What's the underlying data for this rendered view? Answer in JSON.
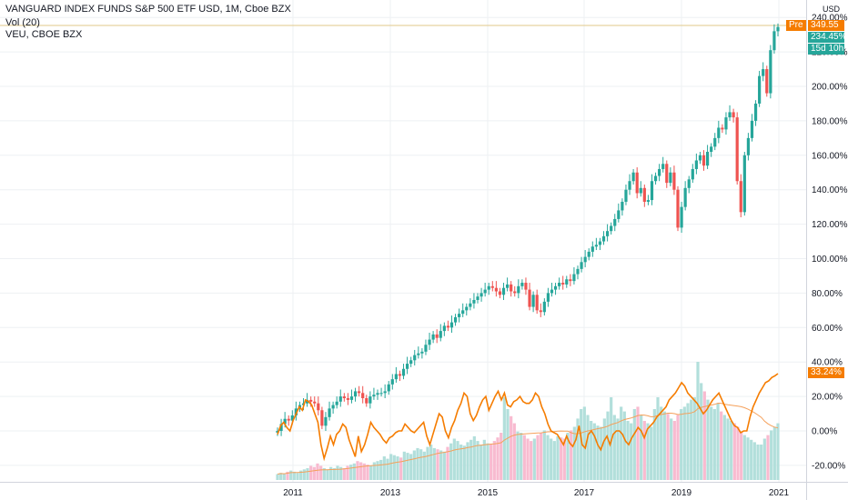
{
  "legend": {
    "main": "VANGUARD INDEX FUNDS S&P 500 ETF USD, 1M, Cboe BZX",
    "volume": "Vol (20)",
    "compare": "VEU, CBOE BZX"
  },
  "currency": "USD",
  "tags": {
    "pre_label": "Pre",
    "pre_value": "349.55",
    "voo_value": "234.45%",
    "countdown": "15d 10h",
    "veu_value": "33.24%"
  },
  "colors": {
    "up": "#26a69a",
    "down": "#ef5350",
    "compare_line": "#f57c00",
    "vol_up": "#b2dfdb",
    "vol_down": "#f8bbd0",
    "grid": "#eef0f3",
    "pre_line": "#e0c98a"
  },
  "chart_data": {
    "type": "candlestick",
    "y_axis": {
      "unit": "%",
      "ticks": [
        "240.00%",
        "220.00%",
        "200.00%",
        "180.00%",
        "160.00%",
        "140.00%",
        "120.00%",
        "100.00%",
        "80.00%",
        "60.00%",
        "40.00%",
        "20.00%",
        "0.00%",
        "-20.00%"
      ],
      "range": [
        -33,
        242
      ]
    },
    "x_axis": {
      "ticks": [
        "2011",
        "2013",
        "2015",
        "2017",
        "2019",
        "2021"
      ]
    },
    "series": [
      {
        "name": "VANGUARD INDEX FUNDS S&P 500 ETF USD",
        "kind": "candlestick",
        "close": [
          0,
          4,
          7,
          6,
          9,
          13,
          15,
          16,
          18,
          17,
          16,
          12,
          3,
          8,
          13,
          15,
          17,
          20,
          19,
          18,
          20,
          23,
          22,
          19,
          16,
          20,
          21,
          22,
          22,
          23,
          27,
          30,
          33,
          32,
          36,
          39,
          41,
          44,
          45,
          46,
          50,
          53,
          56,
          54,
          58,
          61,
          60,
          63,
          66,
          68,
          70,
          72,
          74,
          76,
          78,
          80,
          82,
          84,
          83,
          81,
          79,
          83,
          85,
          81,
          80,
          84,
          86,
          82,
          72,
          79,
          70,
          69,
          75,
          80,
          82,
          84,
          86,
          85,
          88,
          87,
          91,
          94,
          98,
          101,
          104,
          107,
          108,
          110,
          113,
          116,
          119,
          123,
          128,
          133,
          140,
          145,
          150,
          138,
          141,
          133,
          134,
          145,
          148,
          152,
          155,
          144,
          150,
          140,
          118,
          130,
          141,
          146,
          152,
          157,
          160,
          154,
          162,
          165,
          170,
          176,
          175,
          182,
          185,
          182,
          145,
          127,
          160,
          170,
          180,
          190,
          206,
          210,
          196,
          221,
          232,
          234.45
        ],
        "monthly_min_pct": -1,
        "monthly_max_pct": 240
      },
      {
        "name": "VEU, CBOE BZX",
        "kind": "line",
        "values": [
          -2,
          3,
          5,
          2,
          0,
          6,
          10,
          14,
          12,
          18,
          17,
          15,
          10,
          5,
          -8,
          -16,
          -10,
          -3,
          -8,
          -2,
          0,
          4,
          2,
          -5,
          -10,
          -15,
          -3,
          -12,
          -8,
          -2,
          5,
          2,
          0,
          -2,
          -5,
          -7,
          -4,
          -3,
          -1,
          0,
          0,
          4,
          2,
          0,
          -1,
          1,
          3,
          5,
          -3,
          -8,
          -2,
          4,
          10,
          8,
          0,
          -4,
          2,
          6,
          12,
          16,
          22,
          20,
          10,
          6,
          9,
          14,
          18,
          20,
          12,
          16,
          20,
          23,
          18,
          22,
          15,
          14,
          17,
          18,
          20,
          17,
          16,
          16,
          18,
          22,
          20,
          14,
          10,
          4,
          0,
          -1,
          -2,
          -5,
          -8,
          -3,
          -7,
          -9,
          -5,
          3,
          -8,
          -10,
          -2,
          0,
          -3,
          -8,
          -11,
          -6,
          -3,
          -8,
          -2,
          0,
          0,
          -2,
          -6,
          -8,
          -4,
          -1,
          2,
          0,
          -4,
          1,
          3,
          5,
          8,
          10,
          12,
          14,
          18,
          20,
          22,
          25,
          28,
          26,
          22,
          20,
          18,
          16,
          13,
          10,
          12,
          15,
          18,
          20,
          22,
          18,
          14,
          10,
          6,
          3,
          2,
          -1,
          0,
          0,
          8,
          14,
          18,
          22,
          25,
          28,
          29,
          31,
          32,
          33.24
        ]
      },
      {
        "name": "Vol (20)",
        "kind": "volume_bars",
        "relative_values": [
          0.05,
          0.06,
          0.05,
          0.07,
          0.08,
          0.07,
          0.06,
          0.08,
          0.09,
          0.1,
          0.12,
          0.11,
          0.14,
          0.12,
          0.1,
          0.09,
          0.11,
          0.1,
          0.12,
          0.11,
          0.1,
          0.12,
          0.13,
          0.14,
          0.16,
          0.15,
          0.14,
          0.13,
          0.12,
          0.15,
          0.16,
          0.17,
          0.2,
          0.18,
          0.22,
          0.21,
          0.2,
          0.19,
          0.24,
          0.23,
          0.22,
          0.25,
          0.27,
          0.26,
          0.24,
          0.28,
          0.3,
          0.27,
          0.26,
          0.25,
          0.24,
          0.28,
          0.31,
          0.35,
          0.33,
          0.3,
          0.29,
          0.32,
          0.34,
          0.37,
          0.33,
          0.3,
          0.34,
          0.31,
          0.3,
          0.33,
          0.36,
          0.4,
          0.7,
          0.6,
          0.54,
          0.48,
          0.41,
          0.4,
          0.38,
          0.35,
          0.33,
          0.35,
          0.38,
          0.4,
          0.42,
          0.38,
          0.35,
          0.33,
          0.37,
          0.36,
          0.35,
          0.4,
          0.42,
          0.45,
          0.52,
          0.6,
          0.62,
          0.55,
          0.5,
          0.48,
          0.46,
          0.45,
          0.52,
          0.58,
          0.7,
          0.55,
          0.52,
          0.62,
          0.58,
          0.5,
          0.48,
          0.6,
          0.62,
          0.55,
          0.5,
          0.48,
          0.45,
          0.6,
          0.7,
          0.62,
          0.58,
          0.56,
          0.52,
          0.5,
          0.55,
          0.6,
          0.62,
          0.65,
          0.68,
          0.7,
          1,
          0.82,
          0.75,
          0.68,
          0.62,
          0.6,
          0.65,
          0.58,
          0.55,
          0.52,
          0.5,
          0.48,
          0.45,
          0.4,
          0.38,
          0.36,
          0.34,
          0.32,
          0.3,
          0.3,
          0.35,
          0.38,
          0.42,
          0.45,
          0.48
        ],
        "ma_relative": 0.38
      }
    ]
  }
}
